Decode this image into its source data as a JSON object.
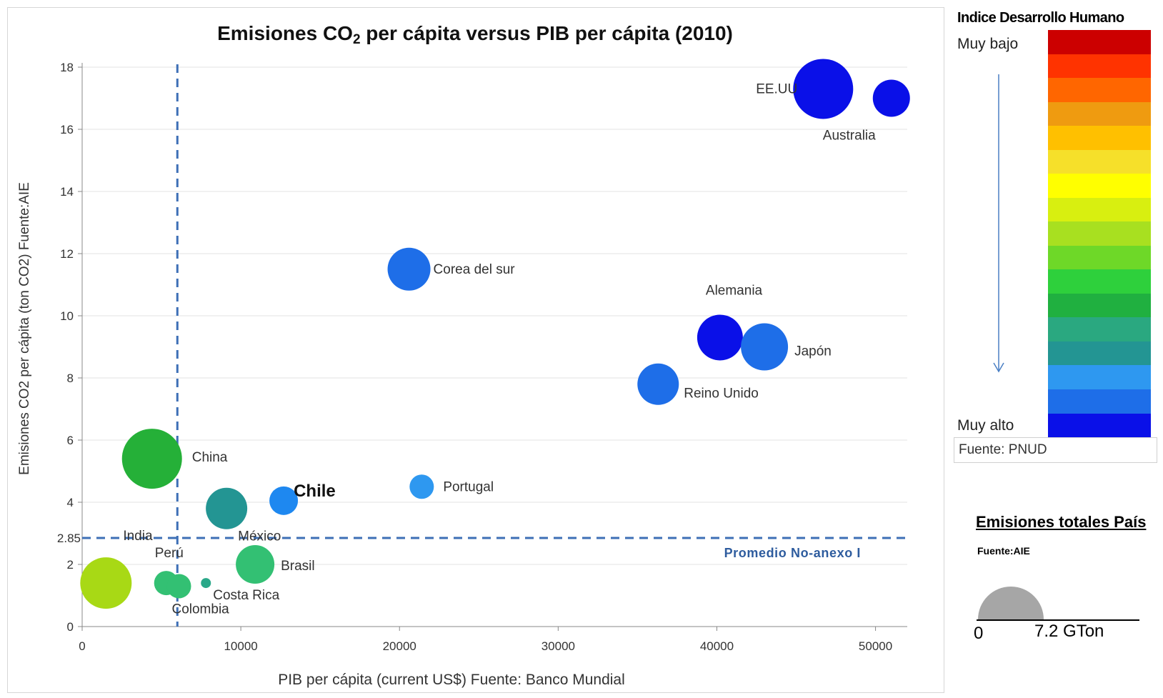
{
  "chart_data": {
    "type": "scatter",
    "title_main": "Emisiones CO",
    "title_sub": "2",
    "title_rest": " per cápita versus PIB per cápita (2010)",
    "xlabel": "PIB per cápita (current US$) Fuente: Banco Mundial",
    "ylabel": "Emisiones CO2 per cápita (ton CO2) Fuente:AIE",
    "xlim": [
      0,
      52000
    ],
    "ylim": [
      0,
      18
    ],
    "x_ticks": [
      "0",
      "10000",
      "20000",
      "30000",
      "40000",
      "50000"
    ],
    "x_tick_values": [
      0,
      10000,
      20000,
      30000,
      40000,
      50000
    ],
    "y_ticks": [
      "0",
      "2",
      "4",
      "6",
      "8",
      "10",
      "12",
      "14",
      "16",
      "18"
    ],
    "y_tick_values": [
      0,
      2,
      4,
      6,
      8,
      10,
      12,
      14,
      16,
      18
    ],
    "grid": "horizontal",
    "reference_lines": {
      "vertical_x": 6000,
      "horizontal_y": 2.85,
      "horizontal_label": "2.85",
      "horizontal_caption": "Promedio No-anexo I"
    },
    "points": [
      {
        "label": "India",
        "x": 1500,
        "y": 1.4,
        "color": "#a8d915"
      },
      {
        "label": "China",
        "x": 4400,
        "y": 5.4,
        "color": "#25b038"
      },
      {
        "label": "Perú",
        "x": 5300,
        "y": 1.4,
        "color": "#33c073"
      },
      {
        "label": "Colombia",
        "x": 6100,
        "y": 1.3,
        "color": "#33c073"
      },
      {
        "label": "Costa Rica",
        "x": 7800,
        "y": 1.4,
        "color": "#2aa889"
      },
      {
        "label": "México",
        "x": 9100,
        "y": 3.8,
        "color": "#239593"
      },
      {
        "label": "Brasil",
        "x": 10900,
        "y": 2.0,
        "color": "#33c073"
      },
      {
        "label": "Chile",
        "x": 12700,
        "y": 4.05,
        "color": "#1e88f0"
      },
      {
        "label": "Corea del sur",
        "x": 20600,
        "y": 11.5,
        "color": "#1e6ee8"
      },
      {
        "label": "Portugal",
        "x": 21400,
        "y": 4.5,
        "color": "#2e98f0"
      },
      {
        "label": "Reino Unido",
        "x": 36300,
        "y": 7.8,
        "color": "#1e6ee8"
      },
      {
        "label": "Alemania",
        "x": 40200,
        "y": 9.3,
        "color": "#0a10e8"
      },
      {
        "label": "Japón",
        "x": 43000,
        "y": 9.0,
        "color": "#1e6ee8"
      },
      {
        "label": "EE.UU",
        "x": 46700,
        "y": 17.3,
        "color": "#0a10e8"
      },
      {
        "label": "Australia",
        "x": 51000,
        "y": 17.0,
        "color": "#0a10e8"
      }
    ]
  },
  "hdi_legend": {
    "title": "Indice Desarrollo Humano",
    "top_label": "Muy bajo",
    "bottom_label": "Muy alto",
    "source": "Fuente: PNUD",
    "colors": [
      "#cc0000",
      "#ff3300",
      "#ff6600",
      "#ef9b10",
      "#ffc000",
      "#f6e02a",
      "#ffff00",
      "#d8ef10",
      "#a8e020",
      "#6ed828",
      "#2ed03c",
      "#20b040",
      "#2aa880",
      "#239593",
      "#2e98f0",
      "#1e6ee8",
      "#0a10e8"
    ]
  },
  "size_legend": {
    "title": "Emisiones totales País",
    "source": "Fuente:AIE",
    "min_label": "0",
    "max_label": "7.2 GTon",
    "color": "#a6a6a6"
  }
}
